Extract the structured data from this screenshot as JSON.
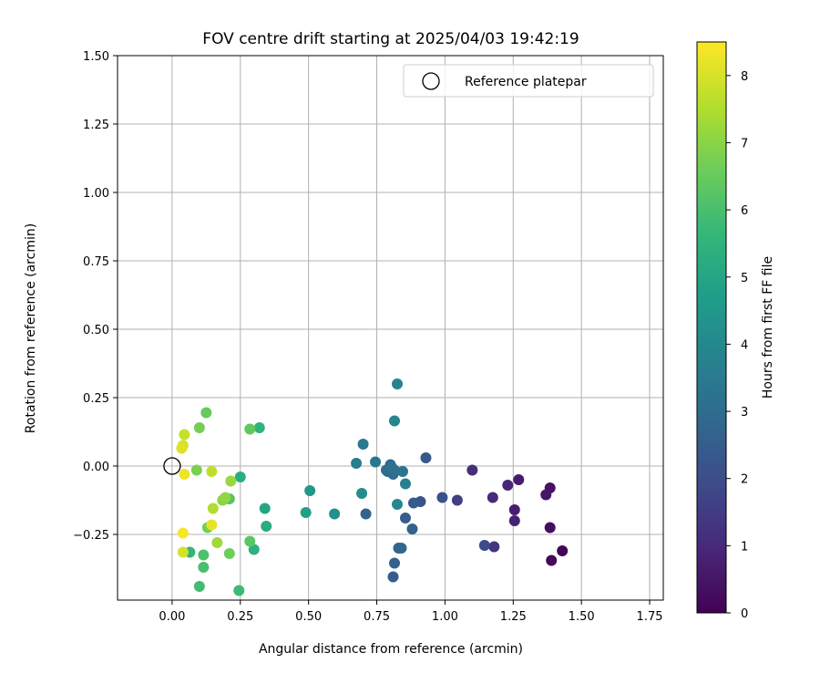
{
  "chart_data": {
    "type": "scatter",
    "title": "FOV centre drift starting at 2025/04/03 19:42:19",
    "xlabel": "Angular distance from reference (arcmin)",
    "ylabel": "Rotation from reference (arcmin)",
    "xlim": [
      -0.2,
      1.8
    ],
    "ylim": [
      -0.49,
      1.5
    ],
    "xticks": [
      0.0,
      0.25,
      0.5,
      0.75,
      1.0,
      1.25,
      1.5,
      1.75
    ],
    "xtick_labels": [
      "0.00",
      "0.25",
      "0.50",
      "0.75",
      "1.00",
      "1.25",
      "1.50",
      "1.75"
    ],
    "yticks": [
      -0.25,
      0.0,
      0.25,
      0.5,
      0.75,
      1.0,
      1.25,
      1.5
    ],
    "ytick_labels": [
      "−0.25",
      "0.00",
      "0.25",
      "0.50",
      "0.75",
      "1.00",
      "1.25",
      "1.50"
    ],
    "grid": true,
    "legend": {
      "placement": "top-right",
      "entries": [
        {
          "label": "Reference platepar",
          "marker": "open-circle"
        }
      ]
    },
    "reference_point": {
      "x": 0.0,
      "y": 0.0
    },
    "colorbar": {
      "label": "Hours from first FF file",
      "colormap": "viridis",
      "range": [
        0,
        8.5
      ],
      "ticks": [
        0,
        1,
        2,
        3,
        4,
        5,
        6,
        7,
        8
      ],
      "tick_labels": [
        "0",
        "1",
        "2",
        "3",
        "4",
        "5",
        "6",
        "7",
        "8"
      ],
      "colors": [
        "#440154",
        "#482878",
        "#3e4a89",
        "#31688e",
        "#26828e",
        "#1f9e89",
        "#35b779",
        "#6dcd59",
        "#b4de2c",
        "#fde725"
      ]
    },
    "points": [
      {
        "x": 1.43,
        "y": -0.31,
        "hours": 0.1
      },
      {
        "x": 1.39,
        "y": -0.345,
        "hours": 0.2
      },
      {
        "x": 1.385,
        "y": -0.225,
        "hours": 0.3
      },
      {
        "x": 1.385,
        "y": -0.08,
        "hours": 0.4
      },
      {
        "x": 1.37,
        "y": -0.105,
        "hours": 0.5
      },
      {
        "x": 1.27,
        "y": -0.05,
        "hours": 0.6
      },
      {
        "x": 1.255,
        "y": -0.16,
        "hours": 0.7
      },
      {
        "x": 1.255,
        "y": -0.2,
        "hours": 0.8
      },
      {
        "x": 1.23,
        "y": -0.07,
        "hours": 0.9
      },
      {
        "x": 1.175,
        "y": -0.115,
        "hours": 1.0
      },
      {
        "x": 1.1,
        "y": -0.015,
        "hours": 1.1
      },
      {
        "x": 1.18,
        "y": -0.295,
        "hours": 1.3
      },
      {
        "x": 1.045,
        "y": -0.125,
        "hours": 1.6
      },
      {
        "x": 1.145,
        "y": -0.29,
        "hours": 1.9
      },
      {
        "x": 0.99,
        "y": -0.115,
        "hours": 2.1
      },
      {
        "x": 0.91,
        "y": -0.13,
        "hours": 2.2
      },
      {
        "x": 0.93,
        "y": 0.03,
        "hours": 2.3
      },
      {
        "x": 0.885,
        "y": -0.135,
        "hours": 2.4
      },
      {
        "x": 0.855,
        "y": -0.19,
        "hours": 2.5
      },
      {
        "x": 0.88,
        "y": -0.23,
        "hours": 2.6
      },
      {
        "x": 0.81,
        "y": -0.405,
        "hours": 2.5
      },
      {
        "x": 0.815,
        "y": -0.355,
        "hours": 2.6
      },
      {
        "x": 0.71,
        "y": -0.175,
        "hours": 2.7
      },
      {
        "x": 0.83,
        "y": -0.3,
        "hours": 2.7
      },
      {
        "x": 0.84,
        "y": -0.3,
        "hours": 2.8
      },
      {
        "x": 0.8,
        "y": 0.005,
        "hours": 2.8
      },
      {
        "x": 0.785,
        "y": -0.015,
        "hours": 2.9
      },
      {
        "x": 0.8,
        "y": -0.02,
        "hours": 2.9
      },
      {
        "x": 0.81,
        "y": -0.03,
        "hours": 3.0
      },
      {
        "x": 0.79,
        "y": -0.02,
        "hours": 3.0
      },
      {
        "x": 0.815,
        "y": -0.015,
        "hours": 3.1
      },
      {
        "x": 0.805,
        "y": -0.005,
        "hours": 3.2
      },
      {
        "x": 0.845,
        "y": -0.02,
        "hours": 3.3
      },
      {
        "x": 0.745,
        "y": 0.015,
        "hours": 3.4
      },
      {
        "x": 0.7,
        "y": 0.08,
        "hours": 3.5
      },
      {
        "x": 0.675,
        "y": 0.01,
        "hours": 3.6
      },
      {
        "x": 0.855,
        "y": -0.065,
        "hours": 3.7
      },
      {
        "x": 0.825,
        "y": 0.3,
        "hours": 3.8
      },
      {
        "x": 0.815,
        "y": 0.165,
        "hours": 3.9
      },
      {
        "x": 0.825,
        "y": -0.14,
        "hours": 4.0
      },
      {
        "x": 0.695,
        "y": -0.1,
        "hours": 4.1
      },
      {
        "x": 0.595,
        "y": -0.175,
        "hours": 4.3
      },
      {
        "x": 0.505,
        "y": -0.09,
        "hours": 4.5
      },
      {
        "x": 0.49,
        "y": -0.17,
        "hours": 4.8
      },
      {
        "x": 0.34,
        "y": -0.155,
        "hours": 5.0
      },
      {
        "x": 0.345,
        "y": -0.22,
        "hours": 5.2
      },
      {
        "x": 0.25,
        "y": -0.04,
        "hours": 5.3
      },
      {
        "x": 0.3,
        "y": -0.305,
        "hours": 5.4
      },
      {
        "x": 0.32,
        "y": 0.14,
        "hours": 5.5
      },
      {
        "x": 0.065,
        "y": -0.315,
        "hours": 5.6
      },
      {
        "x": 0.245,
        "y": -0.455,
        "hours": 5.8
      },
      {
        "x": 0.1,
        "y": -0.44,
        "hours": 5.9
      },
      {
        "x": 0.115,
        "y": -0.37,
        "hours": 6.0
      },
      {
        "x": 0.115,
        "y": -0.325,
        "hours": 6.1
      },
      {
        "x": 0.21,
        "y": -0.12,
        "hours": 6.2
      },
      {
        "x": 0.285,
        "y": -0.275,
        "hours": 6.3
      },
      {
        "x": 0.285,
        "y": 0.135,
        "hours": 6.4
      },
      {
        "x": 0.125,
        "y": 0.195,
        "hours": 6.5
      },
      {
        "x": 0.21,
        "y": -0.32,
        "hours": 6.6
      },
      {
        "x": 0.13,
        "y": -0.225,
        "hours": 6.7
      },
      {
        "x": 0.1,
        "y": 0.14,
        "hours": 6.7
      },
      {
        "x": 0.09,
        "y": -0.015,
        "hours": 6.8
      },
      {
        "x": 0.185,
        "y": -0.125,
        "hours": 7.0
      },
      {
        "x": 0.195,
        "y": -0.115,
        "hours": 7.1
      },
      {
        "x": 0.215,
        "y": -0.055,
        "hours": 7.2
      },
      {
        "x": 0.165,
        "y": -0.28,
        "hours": 7.3
      },
      {
        "x": 0.15,
        "y": -0.155,
        "hours": 7.5
      },
      {
        "x": 0.145,
        "y": -0.02,
        "hours": 7.7
      },
      {
        "x": 0.045,
        "y": 0.115,
        "hours": 7.8
      },
      {
        "x": 0.04,
        "y": 0.075,
        "hours": 7.9
      },
      {
        "x": 0.04,
        "y": -0.315,
        "hours": 8.0
      },
      {
        "x": 0.035,
        "y": 0.065,
        "hours": 8.1
      },
      {
        "x": 0.145,
        "y": -0.215,
        "hours": 8.2
      },
      {
        "x": 0.045,
        "y": -0.03,
        "hours": 8.3
      },
      {
        "x": 0.04,
        "y": -0.245,
        "hours": 8.4
      }
    ]
  }
}
